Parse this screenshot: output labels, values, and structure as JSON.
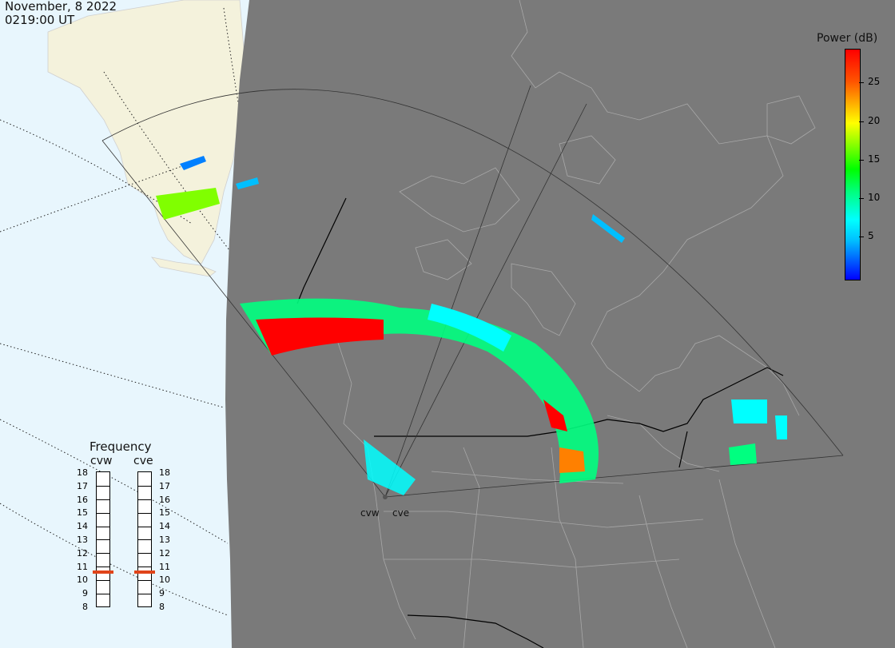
{
  "title": {
    "date": "November, 8 2022",
    "time": "0219:00 UT"
  },
  "colorbar": {
    "title": "Power (dB)",
    "ticks": [
      "25",
      "20",
      "15",
      "10",
      "5"
    ],
    "colors": [
      "#0000ff",
      "#00bfff",
      "#00ffff",
      "#00ff00",
      "#ffff00",
      "#ff8000",
      "#ff0000"
    ],
    "range_db": [
      0,
      29
    ]
  },
  "frequency": {
    "title": "Frequency",
    "radars": [
      {
        "name": "cvw",
        "value_mhz": 10.8
      },
      {
        "name": "cve",
        "value_mhz": 10.8
      }
    ],
    "scale": [
      "18",
      "17",
      "16",
      "15",
      "14",
      "13",
      "12",
      "11",
      "10",
      "9",
      "8"
    ],
    "marker_color": "#e0441a"
  },
  "sites": [
    {
      "name": "cvw"
    },
    {
      "name": "cve"
    }
  ],
  "map": {
    "night_color": "#7a7a7a",
    "day_ocean_color": "#e8f6fd",
    "day_land_color": "#f4f2dc"
  }
}
